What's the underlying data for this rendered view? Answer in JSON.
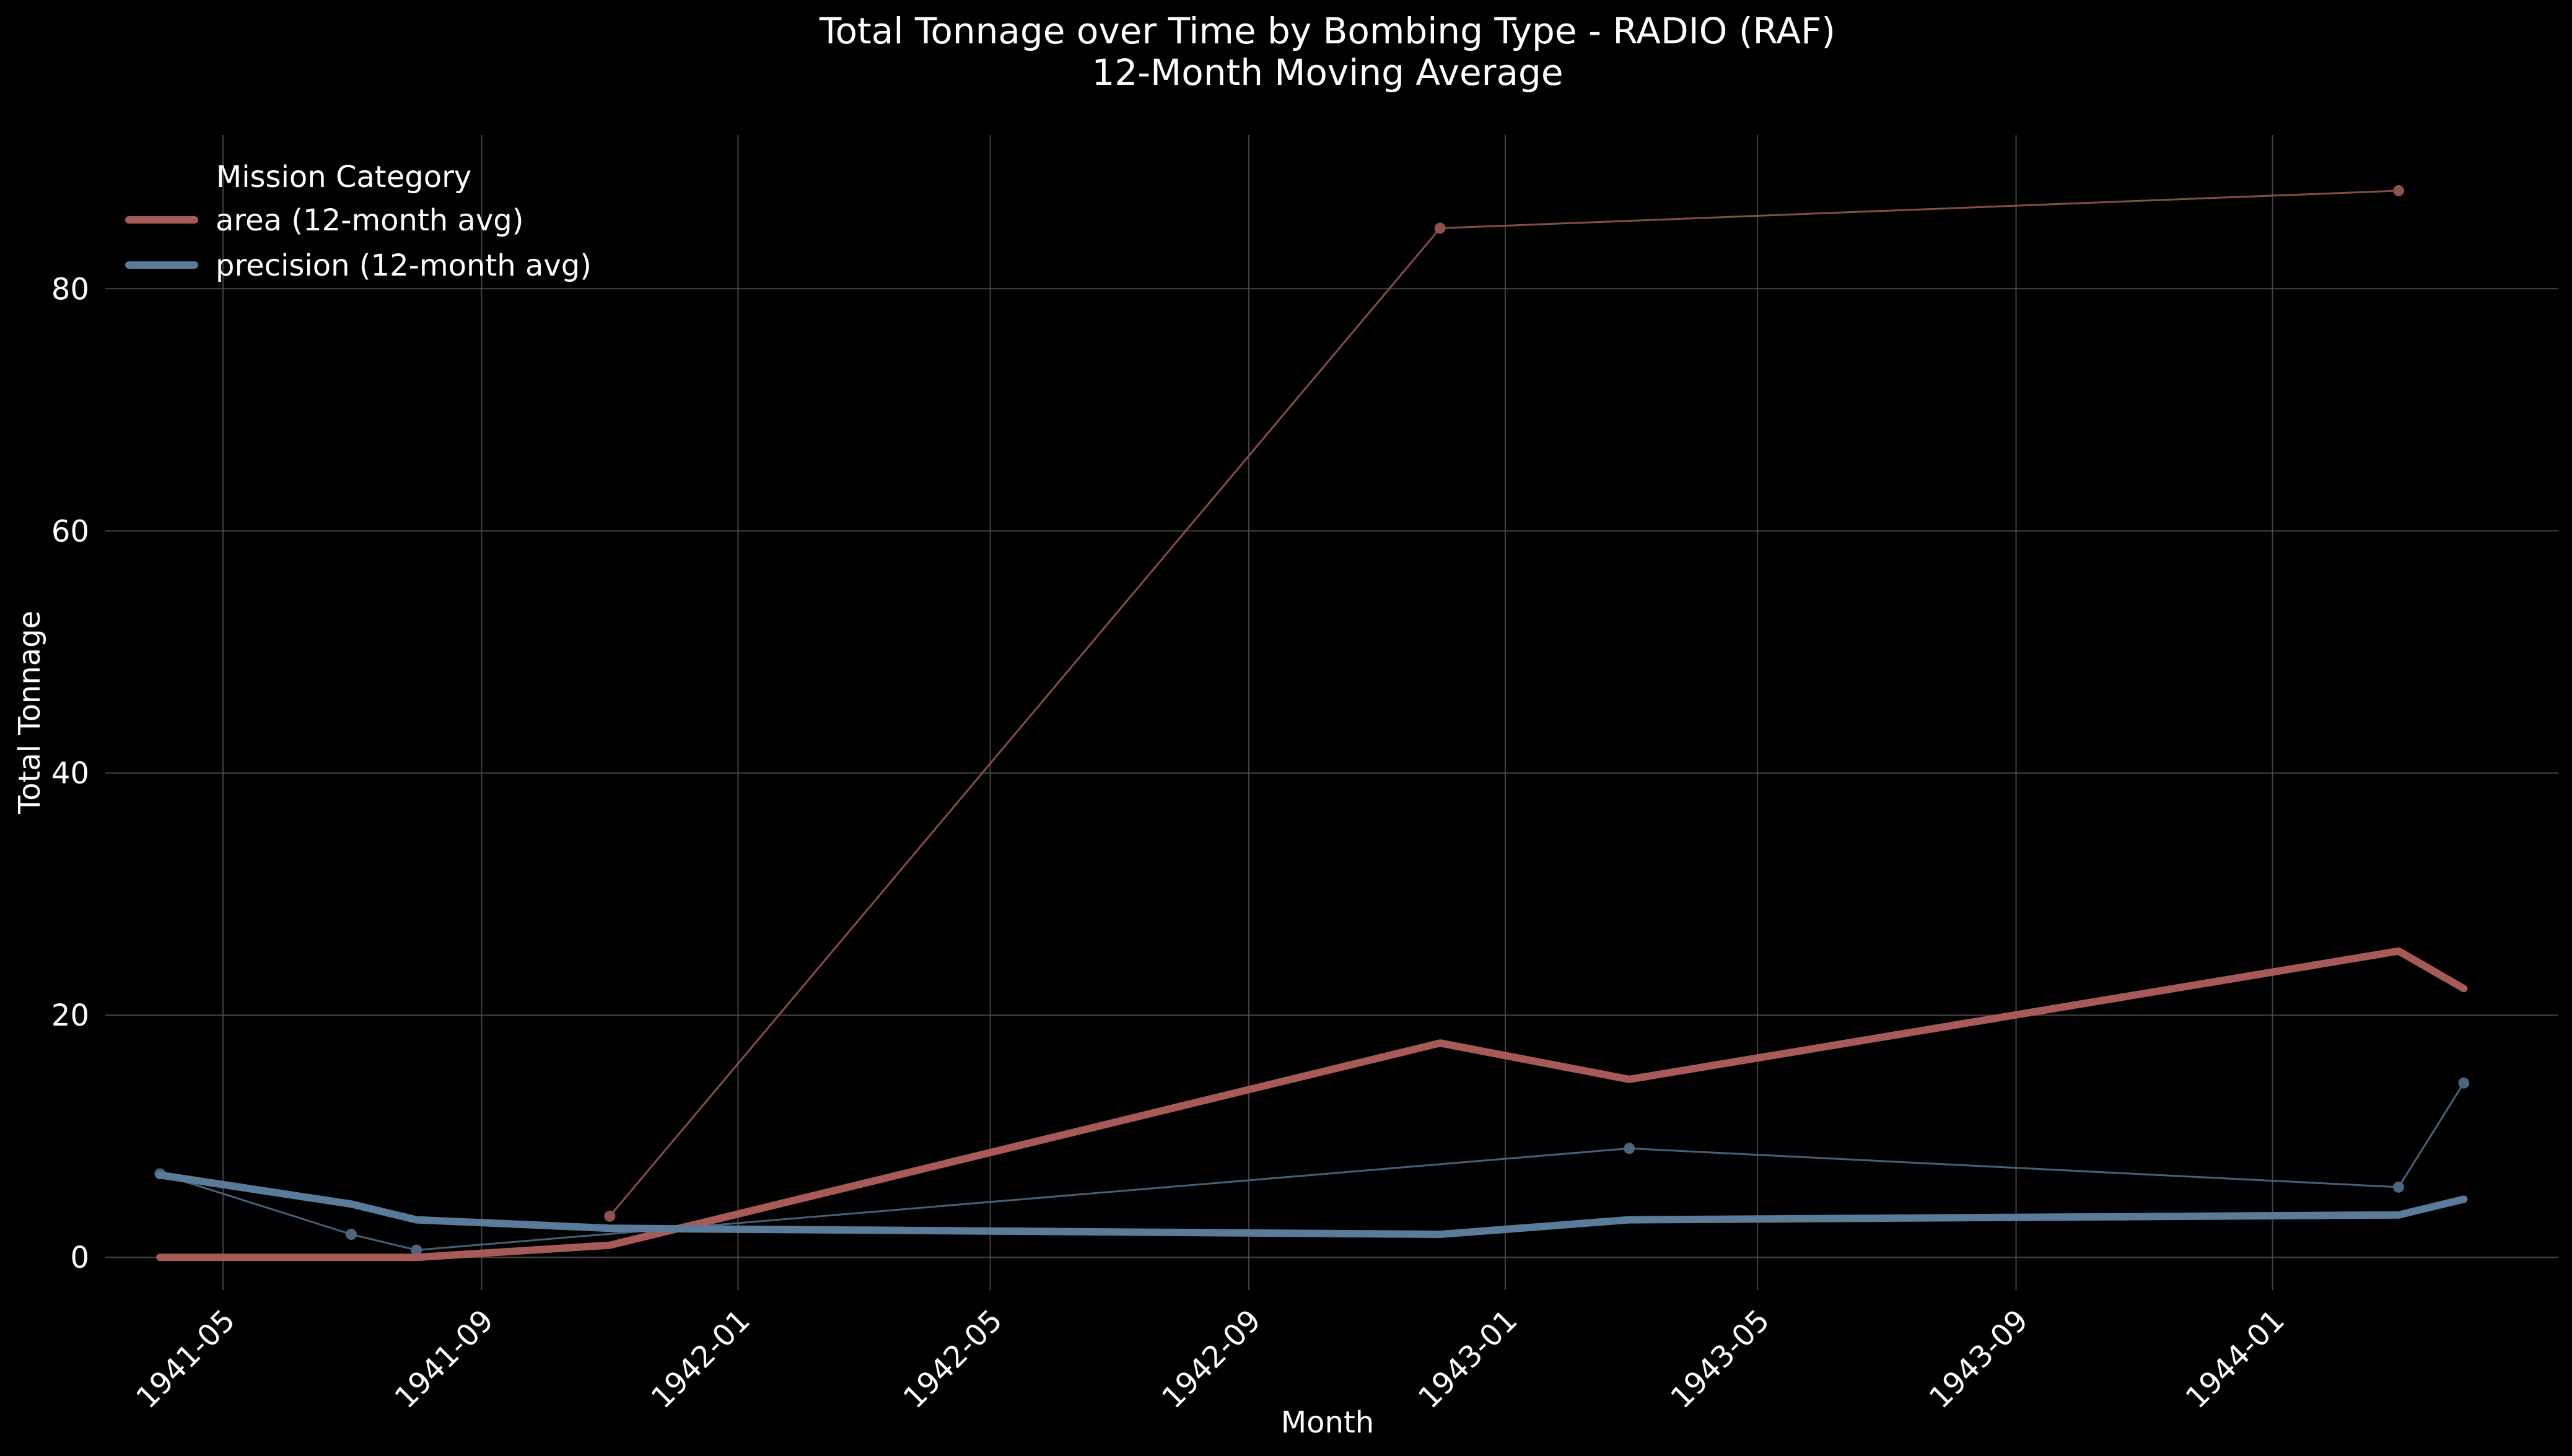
{
  "chart_data": {
    "type": "line",
    "title": "Total Tonnage over Time by Bombing Type - RADIO (RAF)",
    "subtitle": "12-Month Moving Average",
    "xlabel": "Month",
    "ylabel": "Total Tonnage",
    "x_ticks": [
      "1941-05",
      "1941-09",
      "1942-01",
      "1942-05",
      "1942-09",
      "1943-01",
      "1943-05",
      "1943-09",
      "1944-01"
    ],
    "y_ticks": [
      0,
      20,
      40,
      60,
      80
    ],
    "ylim": [
      -2.7,
      92.7
    ],
    "xlim": [
      "1941-03-06",
      "1944-05-16"
    ],
    "grid": true,
    "legend": {
      "title": "Mission Category",
      "position": "top-left"
    },
    "series": [
      {
        "name": "area (12-month avg)",
        "kind": "moving_average",
        "color": "#a85a57",
        "points": [
          [
            "1941-04-01",
            0.0
          ],
          [
            "1941-07-01",
            0.0
          ],
          [
            "1941-08-01",
            0.0
          ],
          [
            "1941-11-01",
            1.0
          ],
          [
            "1942-12-01",
            17.7
          ],
          [
            "1943-03-01",
            14.7
          ],
          [
            "1944-03-01",
            25.3
          ],
          [
            "1944-04-01",
            22.2
          ]
        ]
      },
      {
        "name": "precision (12-month avg)",
        "kind": "moving_average",
        "color": "#5a7b99",
        "points": [
          [
            "1941-04-01",
            6.8
          ],
          [
            "1941-07-01",
            4.4
          ],
          [
            "1941-08-01",
            3.1
          ],
          [
            "1941-11-01",
            2.4
          ],
          [
            "1942-12-01",
            1.9
          ],
          [
            "1943-03-01",
            3.1
          ],
          [
            "1944-03-01",
            3.5
          ],
          [
            "1944-04-01",
            4.8
          ]
        ]
      },
      {
        "kind": "monthly",
        "color": "#8e514c",
        "points": [
          [
            "1941-11-01",
            3.4
          ],
          [
            "1942-12-01",
            85.0
          ],
          [
            "1944-03-01",
            88.1
          ]
        ]
      },
      {
        "kind": "monthly",
        "color": "#4b6680",
        "points": [
          [
            "1941-04-01",
            6.9
          ],
          [
            "1941-07-01",
            1.9
          ],
          [
            "1941-08-01",
            0.6
          ],
          [
            "1943-03-01",
            9.0
          ],
          [
            "1944-03-01",
            5.8
          ],
          [
            "1944-04-01",
            14.4
          ]
        ]
      }
    ]
  }
}
